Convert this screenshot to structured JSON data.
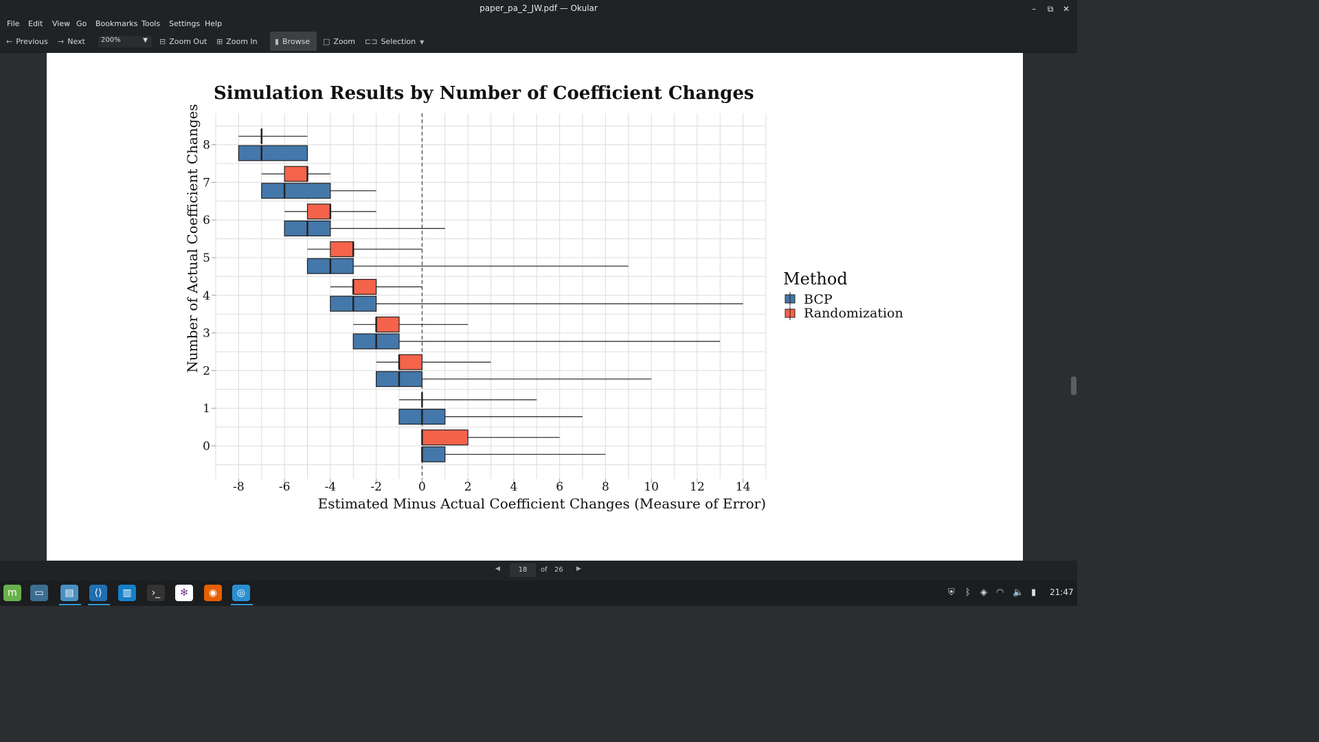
{
  "window": {
    "title": "paper_pa_2_JW.pdf — Okular"
  },
  "menubar": [
    "File",
    "Edit",
    "View",
    "Go",
    "Bookmarks",
    "Tools",
    "Settings",
    "Help"
  ],
  "toolbar": {
    "previous": "Previous",
    "next": "Next",
    "zoom_value": "200%",
    "zoom_out": "Zoom Out",
    "zoom_in": "Zoom In",
    "browse": "Browse",
    "zoom": "Zoom",
    "selection": "Selection"
  },
  "pager": {
    "current": "18",
    "of_label": "of",
    "total": "26"
  },
  "clock": "21:47",
  "colors": {
    "bcp": "#4477aa",
    "randomization": "#f5634a",
    "app_bg": "#202326"
  },
  "chart_data": {
    "type": "boxplot",
    "title": "Simulation Results by Number of Coefficient Changes",
    "xlabel": "Estimated Minus Actual Coefficient Changes (Measure of Error)",
    "ylabel": "Number of Actual Coefficient Changes",
    "xlim": [
      -9,
      15
    ],
    "x_ticks": [
      "-8",
      "-6",
      "-4",
      "-2",
      "0",
      "2",
      "4",
      "6",
      "8",
      "10",
      "12",
      "14"
    ],
    "y_ticks": [
      "0",
      "1",
      "2",
      "3",
      "4",
      "5",
      "6",
      "7",
      "8"
    ],
    "reference_line_x": 0,
    "legend": {
      "title": "Method",
      "entries": [
        "BCP",
        "Randomization"
      ],
      "position": "right"
    },
    "series": [
      {
        "name": "BCP",
        "boxes": [
          {
            "y": 0,
            "min": 0,
            "q1": 0,
            "median": 0,
            "q3": 1,
            "max": 8
          },
          {
            "y": 1,
            "min": -1,
            "q1": -1,
            "median": 0,
            "q3": 1,
            "max": 7
          },
          {
            "y": 2,
            "min": -2,
            "q1": -2,
            "median": -1,
            "q3": 0,
            "max": 10
          },
          {
            "y": 3,
            "min": -3,
            "q1": -3,
            "median": -2,
            "q3": -1,
            "max": 13
          },
          {
            "y": 4,
            "min": -4,
            "q1": -4,
            "median": -3,
            "q3": -2,
            "max": 14
          },
          {
            "y": 5,
            "min": -5,
            "q1": -5,
            "median": -4,
            "q3": -3,
            "max": 9
          },
          {
            "y": 6,
            "min": -6,
            "q1": -6,
            "median": -5,
            "q3": -4,
            "max": 1
          },
          {
            "y": 7,
            "min": -7,
            "q1": -7,
            "median": -6,
            "q3": -4,
            "max": -2
          },
          {
            "y": 8,
            "min": -8,
            "q1": -8,
            "median": -7,
            "q3": -5,
            "max": -5
          }
        ]
      },
      {
        "name": "Randomization",
        "boxes": [
          {
            "y": 0,
            "min": 0,
            "q1": 0,
            "median": 0,
            "q3": 2,
            "max": 6
          },
          {
            "y": 1,
            "min": -1,
            "q1": 0,
            "median": 0,
            "q3": 0,
            "max": 5
          },
          {
            "y": 2,
            "min": -2,
            "q1": -1,
            "median": -1,
            "q3": 0,
            "max": 3
          },
          {
            "y": 3,
            "min": -3,
            "q1": -2,
            "median": -2,
            "q3": -1,
            "max": 2
          },
          {
            "y": 4,
            "min": -4,
            "q1": -3,
            "median": -3,
            "q3": -2,
            "max": 0
          },
          {
            "y": 5,
            "min": -5,
            "q1": -4,
            "median": -3,
            "q3": -3,
            "max": 0
          },
          {
            "y": 6,
            "min": -6,
            "q1": -5,
            "median": -4,
            "q3": -4,
            "max": -2
          },
          {
            "y": 7,
            "min": -7,
            "q1": -6,
            "median": -5,
            "q3": -5,
            "max": -4
          },
          {
            "y": 8,
            "min": -8,
            "q1": -7,
            "median": -7,
            "q3": -7,
            "max": -5
          }
        ]
      }
    ]
  }
}
